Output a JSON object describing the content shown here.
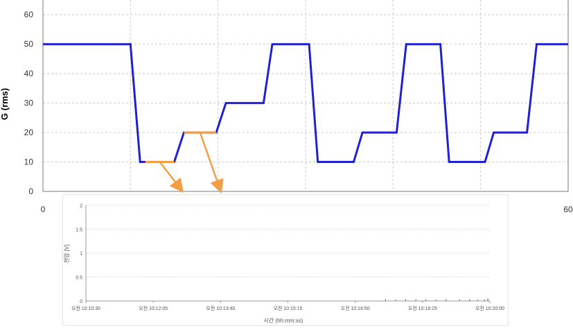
{
  "colors": {
    "series": "#1f1fd6",
    "highlight": "#f59d45",
    "grid": "#c8c8c8",
    "axis": "#777777",
    "text": "#333333"
  },
  "chart_data": [
    {
      "type": "line",
      "title": "",
      "xlabel": "",
      "ylabel": "G (rms)",
      "xlim": [
        0,
        60
      ],
      "ylim": [
        0,
        65
      ],
      "x_ticks": [
        "0",
        "60"
      ],
      "y_ticks": [
        "0",
        "10",
        "20",
        "30",
        "40",
        "50",
        "60"
      ],
      "grid": true,
      "series": [
        {
          "points": [
            [
              0,
              50
            ],
            [
              10,
              50
            ],
            [
              11.1,
              10
            ],
            [
              11.7,
              10
            ],
            [
              15.0,
              10
            ],
            [
              16.1,
              20
            ],
            [
              19.8,
              20
            ],
            [
              20.9,
              30
            ],
            [
              25.2,
              30
            ],
            [
              26.2,
              50
            ],
            [
              30.4,
              50
            ],
            [
              31.4,
              10
            ],
            [
              35.5,
              10
            ],
            [
              36.5,
              20
            ],
            [
              40.4,
              20
            ],
            [
              41.5,
              50
            ],
            [
              45.4,
              50
            ],
            [
              46.4,
              10
            ],
            [
              50.5,
              10
            ],
            [
              51.5,
              20
            ],
            [
              55.3,
              20
            ],
            [
              56.4,
              50
            ],
            [
              60,
              50
            ]
          ]
        }
      ],
      "annotations": [
        {
          "kind": "segment",
          "x": [
            11.7,
            15.0
          ],
          "y": 10,
          "arrow_to_x": 15.7
        },
        {
          "kind": "segment",
          "x": [
            16.1,
            19.8
          ],
          "y": 20,
          "arrow_to_x": 20.2
        }
      ]
    },
    {
      "type": "line",
      "title": "",
      "xlabel": "시간 (hh:mm:ss)",
      "ylabel": "전압 [V]",
      "ylim": [
        0,
        2
      ],
      "y_ticks": [
        "0",
        "0.5",
        "1",
        "1.5",
        "2"
      ],
      "x_ticks": [
        "오전 10:10:30",
        "오전 10:12:05",
        "오전 10:13:40",
        "오전 10:15:15",
        "오전 10:16:50",
        "오전 10:18:25",
        "오전 10:20:00"
      ],
      "grid": true,
      "series": [
        {
          "points": [
            [
              4.45,
              0.02
            ],
            [
              4.6,
              0.01
            ],
            [
              4.75,
              0.02
            ],
            [
              4.9,
              0.015
            ],
            [
              5.05,
              0.02
            ],
            [
              5.2,
              0.01
            ],
            [
              5.35,
              0.02
            ],
            [
              5.55,
              0.015
            ],
            [
              5.7,
              0.02
            ],
            [
              5.82,
              0.01
            ],
            [
              5.92,
              0.02
            ],
            [
              5.97,
              0.04
            ]
          ]
        }
      ]
    }
  ]
}
